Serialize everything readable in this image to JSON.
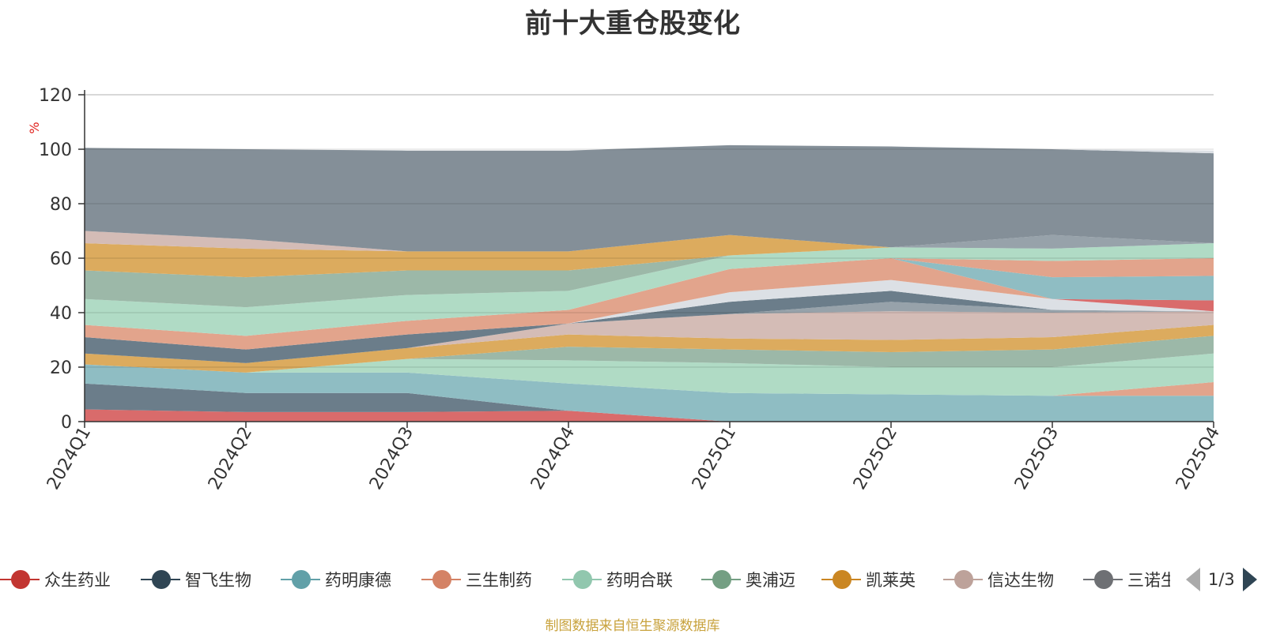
{
  "chart_data": {
    "type": "area",
    "title": "前十大重仓股变化",
    "ylabel": "%",
    "ylim": [
      0,
      120
    ],
    "yticks": [
      "0",
      "20",
      "40",
      "60",
      "80",
      "100",
      "120"
    ],
    "categories": [
      "2024Q1",
      "2024Q2",
      "2024Q3",
      "2024Q4",
      "2025Q1",
      "2025Q2",
      "2025Q3",
      "2025Q4"
    ],
    "stacked": true,
    "grid": true,
    "legend_position": "bottom",
    "series": [
      {
        "name": "众生药业",
        "color": "#d96b6b",
        "values": [
          4.5,
          3.5,
          3.5,
          4,
          0,
          0,
          0,
          0
        ]
      },
      {
        "name": "智飞生物",
        "color": "#6b7d8a",
        "values": [
          9.5,
          7,
          7,
          0,
          0,
          0,
          0,
          0
        ]
      },
      {
        "name": "药明康德",
        "color": "#8fbdc3",
        "values": [
          7,
          7.5,
          7.5,
          10,
          10.5,
          10,
          9.5,
          9.5
        ]
      },
      {
        "name": "三生制药",
        "color": "#e2a48c",
        "values": [
          0,
          0,
          0,
          0,
          0,
          0,
          0,
          5
        ]
      },
      {
        "name": "药明合联",
        "color": "#b0dbc5",
        "values": [
          0,
          0,
          5,
          8.5,
          11,
          10,
          10.5,
          10.5
        ]
      },
      {
        "name": "奥浦迈",
        "color": "#9cb8a8",
        "values": [
          0,
          0,
          0,
          5,
          5,
          5.5,
          6.5,
          6.5
        ]
      },
      {
        "name": "凯莱英",
        "color": "#dcab5e",
        "values": [
          4,
          3.5,
          4,
          4.5,
          4,
          4.5,
          4.5,
          4
        ]
      },
      {
        "name": "信达生物",
        "color": "#d4bcb6",
        "values": [
          0,
          0,
          0,
          4,
          9,
          10.5,
          9,
          5
        ]
      },
      {
        "name": "三诺生物",
        "color": "#97a2aa",
        "values": [
          0,
          0,
          0,
          0,
          0,
          3.5,
          1,
          0
        ]
      },
      {
        "name": "",
        "color": "#6b7d8a",
        "values": [
          6,
          5,
          5,
          0,
          4.5,
          4,
          0,
          0
        ]
      },
      {
        "name": "",
        "color": "#dce0e5",
        "values": [
          0,
          0,
          0,
          0,
          3.5,
          4,
          4,
          0
        ]
      },
      {
        "name": "",
        "color": "#d96b6b",
        "values": [
          0,
          0,
          0,
          0,
          0,
          0,
          0,
          4
        ]
      },
      {
        "name": "",
        "color": "#e2a48c",
        "values": [
          4.5,
          5,
          5,
          5,
          8.5,
          8,
          0,
          0
        ]
      },
      {
        "name": "",
        "color": "#8fbdc3",
        "values": [
          0,
          0,
          0,
          0,
          0,
          0,
          8,
          9
        ]
      },
      {
        "name": "",
        "color": "#e2a48c",
        "values": [
          0,
          0,
          0,
          0,
          0,
          0,
          6,
          6.5
        ]
      },
      {
        "name": "",
        "color": "#b0dbc5",
        "values": [
          9.5,
          10.5,
          9.5,
          7,
          5,
          4,
          4.5,
          5.5
        ]
      },
      {
        "name": "",
        "color": "#9cb8a8",
        "values": [
          10.5,
          11,
          9,
          7.5,
          0,
          0,
          0,
          0
        ]
      },
      {
        "name": "",
        "color": "#dcab5e",
        "values": [
          10,
          10.5,
          7,
          7,
          7.5,
          0,
          0,
          0
        ]
      },
      {
        "name": "",
        "color": "#97a2aa",
        "values": [
          0,
          0,
          0,
          0,
          0,
          0,
          5,
          0
        ]
      },
      {
        "name": "",
        "color": "#d4bcb6",
        "values": [
          4.5,
          3.5,
          0,
          0,
          0,
          0,
          0,
          0
        ]
      },
      {
        "name": "",
        "color": "#848f98",
        "values": [
          30.5,
          33,
          37,
          37,
          33,
          37,
          31.5,
          33
        ]
      },
      {
        "name": "",
        "color": "#dce0e5",
        "values": [
          0,
          0,
          0,
          0,
          0,
          0,
          0,
          1
        ]
      }
    ]
  },
  "legend": {
    "items": [
      {
        "label": "众生药业",
        "color": "#c23531"
      },
      {
        "label": "智飞生物",
        "color": "#2f4554"
      },
      {
        "label": "药明康德",
        "color": "#61a0a8"
      },
      {
        "label": "三生制药",
        "color": "#d48265"
      },
      {
        "label": "药明合联",
        "color": "#91c7ae"
      },
      {
        "label": "奥浦迈",
        "color": "#749f83"
      },
      {
        "label": "凯莱英",
        "color": "#ca8622"
      },
      {
        "label": "信达生物",
        "color": "#bda29a"
      },
      {
        "label": "三诺生物",
        "color": "#6e7074"
      }
    ],
    "page_indicator": "1/3"
  },
  "footnote": "制图数据来自恒生聚源数据库"
}
